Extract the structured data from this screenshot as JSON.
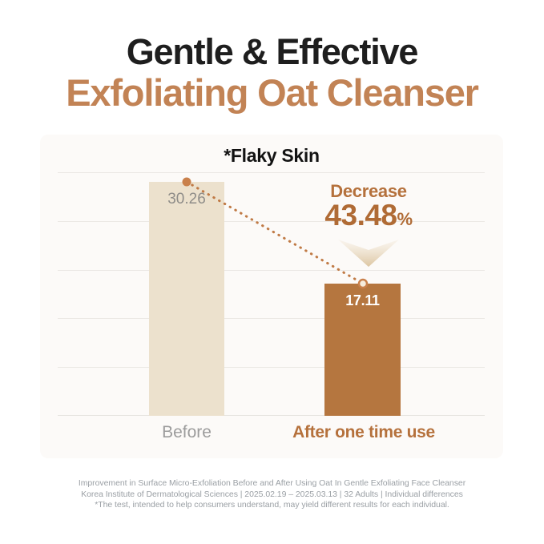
{
  "header": {
    "title_black": "Gentle & Effective",
    "title_brown": "Exfoliating Oat Cleanser"
  },
  "chart_data": {
    "type": "bar",
    "title": "*Flaky Skin",
    "categories": [
      "Before",
      "After one time use"
    ],
    "values": [
      30.26,
      17.11
    ],
    "ylim": [
      0,
      31.5
    ],
    "grid": true,
    "gridline_count": 6,
    "legend": false,
    "bar_colors": [
      "#ece1cd",
      "#b5763f"
    ],
    "value_label_colors": [
      "#8f8d89",
      "#ffffff"
    ],
    "annotation": {
      "label": "Decrease",
      "value": "43.48",
      "unit": "%"
    }
  },
  "colors": {
    "title_black": "#1e1e1e",
    "title_brown": "#c28355",
    "accent_brown": "#b06b35",
    "dotted_line": "#c07a45",
    "category_gray": "#9c9c9c",
    "footer_gray": "#9ba0a5",
    "card_background": "#fcfaf8"
  },
  "footer": {
    "line1": "Improvement in Surface Micro-Exfoliation Before and After Using Oat In Gentle Exfoliating Face Cleanser",
    "line2": "Korea Institute of Dermatological Sciences | 2025.02.19 – 2025.03.13 | 32 Adults | Individual differences",
    "line3": "*The test, intended to help consumers understand, may yield different results for each individual."
  }
}
